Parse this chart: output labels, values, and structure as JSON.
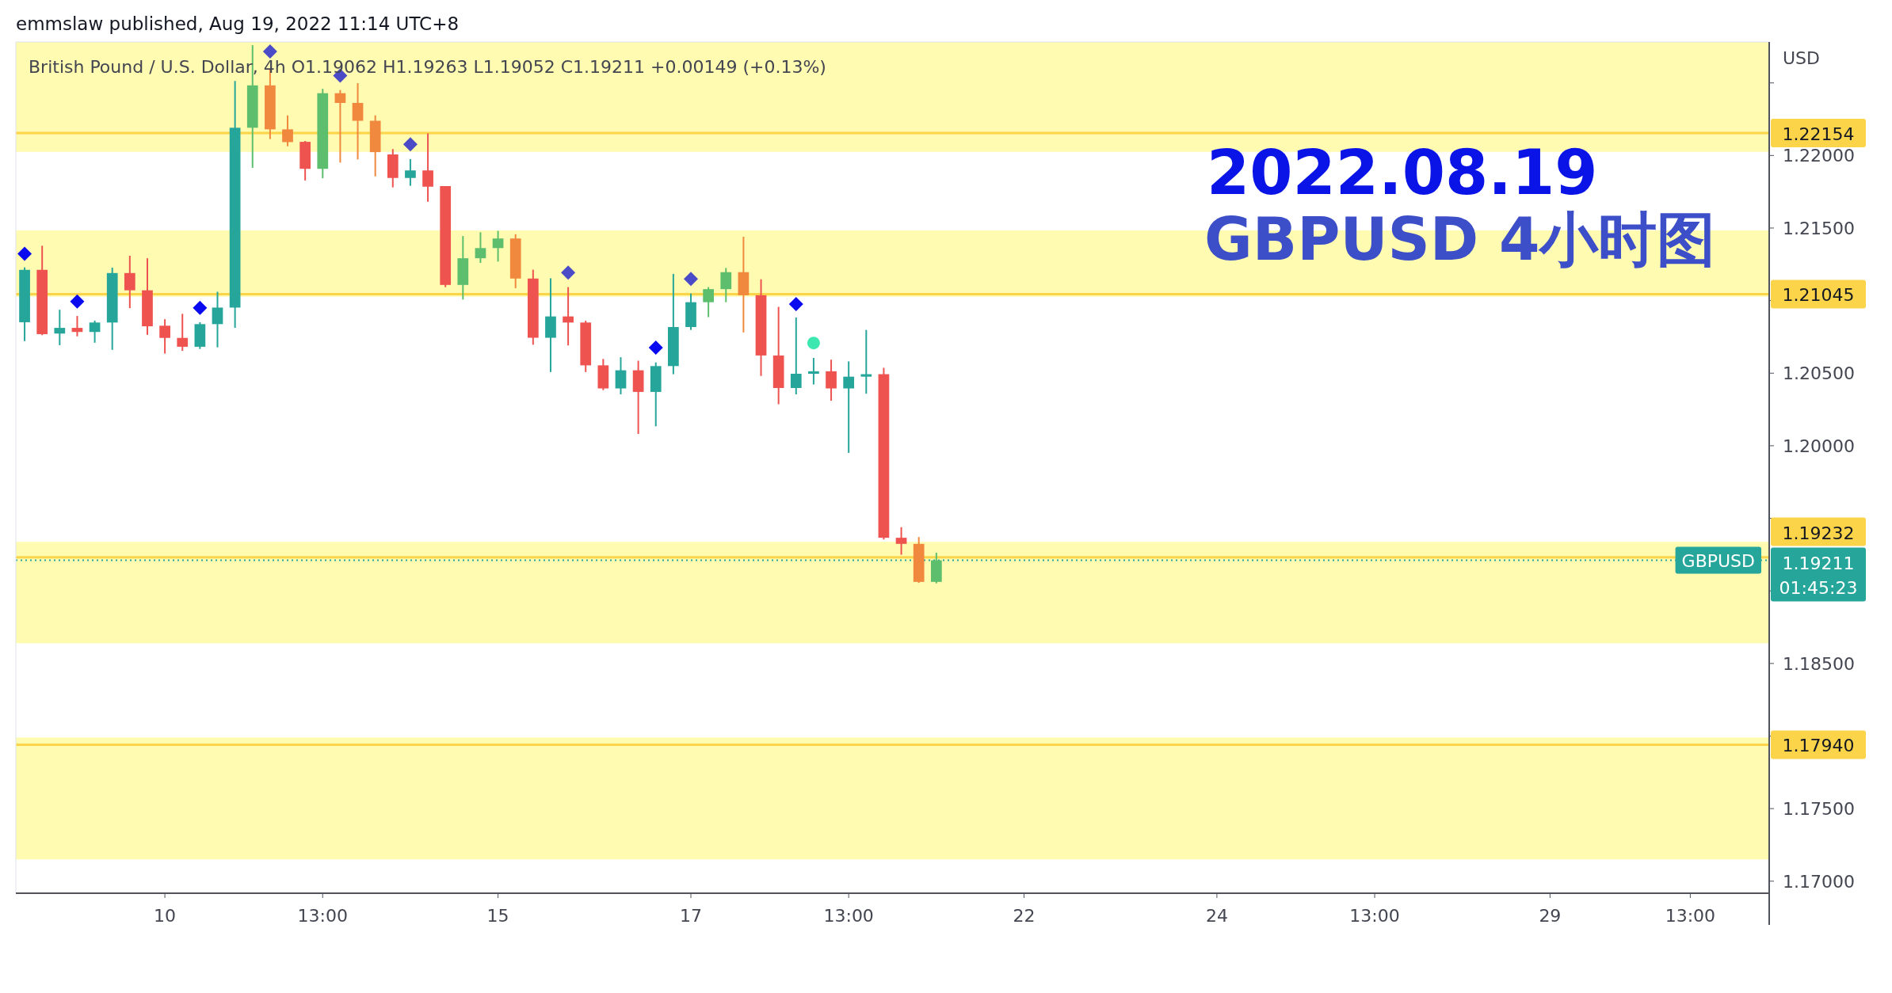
{
  "chart_data": {
    "type": "candlestick",
    "title": "2022.08.19",
    "subtitle": "GBPUSD 4小时图",
    "ylabel": "USD",
    "annotations": [
      "emmslaw published, Aug 19, 2022 11:14 UTC+8",
      "British Pound / U.S. Dollar, 4h  O1.19062  H1.19263  L1.19052  C1.19211  +0.00149 (+0.13%)",
      {
        "text": "GBPUSD",
        "y": 1.19211
      }
    ],
    "categories": [
      null,
      null,
      null,
      null,
      null,
      null,
      null,
      null,
      "10",
      null,
      null,
      null,
      null,
      null,
      null,
      null,
      null,
      "13:00",
      null,
      null,
      null,
      null,
      null,
      null,
      null,
      null,
      null,
      "15",
      null,
      null,
      null,
      null,
      null,
      null,
      null,
      null,
      null,
      null,
      "17",
      null,
      null,
      null,
      null,
      null,
      null,
      null,
      null,
      "13:00",
      null,
      null,
      null,
      null,
      null,
      null,
      null,
      null,
      null,
      "22",
      null,
      null,
      null,
      null,
      null,
      null,
      null,
      null,
      null,
      null,
      "24",
      null,
      null,
      null,
      null,
      null,
      null,
      null,
      null,
      "13:00",
      null,
      null,
      null,
      null,
      null,
      null,
      null,
      null,
      null,
      "29",
      null,
      null,
      null,
      null,
      null,
      null,
      null,
      "13:00",
      null,
      null,
      null,
      null
    ],
    "ohlc": [
      [
        1.20851,
        1.21229,
        1.20721,
        1.21212
      ],
      [
        1.21212,
        1.21378,
        1.20762,
        1.20769
      ],
      [
        1.20773,
        1.20937,
        1.20693,
        1.20812
      ],
      [
        1.20812,
        1.20894,
        1.20754,
        1.20784
      ],
      [
        1.20784,
        1.20862,
        1.2071,
        1.20849
      ],
      [
        1.20849,
        1.21227,
        1.20661,
        1.2119
      ],
      [
        1.2119,
        1.21309,
        1.20948,
        1.21071
      ],
      [
        1.21071,
        1.21292,
        1.20764,
        1.20823
      ],
      [
        1.20827,
        1.20872,
        1.20635,
        1.20743
      ],
      [
        1.20743,
        1.20909,
        1.20654,
        1.20682
      ],
      [
        1.20682,
        1.20851,
        1.20667,
        1.20838
      ],
      [
        1.20838,
        1.21061,
        1.20678,
        1.20952
      ],
      [
        1.20952,
        1.22513,
        1.20812,
        1.22191
      ],
      [
        1.22191,
        1.2276,
        1.21915,
        1.22483
      ],
      [
        1.22483,
        1.22596,
        1.22113,
        1.2218
      ],
      [
        1.2218,
        1.22276,
        1.22064,
        1.22092
      ],
      [
        1.22094,
        1.221,
        1.21828,
        1.21908
      ],
      [
        1.21908,
        1.22459,
        1.21843,
        1.22429
      ],
      [
        1.22429,
        1.22451,
        1.21951,
        1.22362
      ],
      [
        1.22362,
        1.22498,
        1.21973,
        1.22239
      ],
      [
        1.22239,
        1.22276,
        1.21856,
        1.22023
      ],
      [
        1.22007,
        1.22044,
        1.2178,
        1.21845
      ],
      [
        1.21845,
        1.21975,
        1.21791,
        1.21897
      ],
      [
        1.21897,
        1.22152,
        1.21681,
        1.21785
      ],
      [
        1.21789,
        1.21789,
        1.21093,
        1.21108
      ],
      [
        1.21108,
        1.21445,
        1.21007,
        1.21292
      ],
      [
        1.21292,
        1.21471,
        1.2126,
        1.21362
      ],
      [
        1.21362,
        1.21481,
        1.21269,
        1.21428
      ],
      [
        1.21428,
        1.21457,
        1.21086,
        1.21152
      ],
      [
        1.21152,
        1.21213,
        1.20696,
        1.20744
      ],
      [
        1.20744,
        1.21154,
        1.20508,
        1.20891
      ],
      [
        1.20891,
        1.21093,
        1.20691,
        1.20849
      ],
      [
        1.20849,
        1.20861,
        1.20508,
        1.20554
      ],
      [
        1.20554,
        1.20598,
        1.20383,
        1.20395
      ],
      [
        1.20395,
        1.2061,
        1.20354,
        1.2052
      ],
      [
        1.2052,
        1.20586,
        1.20081,
        1.20371
      ],
      [
        1.20371,
        1.20574,
        1.20134,
        1.20549
      ],
      [
        1.20549,
        1.21184,
        1.20493,
        1.20818
      ],
      [
        1.20818,
        1.21049,
        1.20798,
        1.20989
      ],
      [
        1.20989,
        1.21093,
        1.20886,
        1.21079
      ],
      [
        1.21079,
        1.21225,
        1.20989,
        1.21196
      ],
      [
        1.21196,
        1.2144,
        1.20781,
        1.21037
      ],
      [
        1.21037,
        1.21147,
        1.20481,
        1.20622
      ],
      [
        1.20622,
        1.20957,
        1.20286,
        1.20398
      ],
      [
        1.20398,
        1.20884,
        1.20354,
        1.20496
      ],
      [
        1.20496,
        1.20605,
        1.20422,
        1.20513
      ],
      [
        1.20513,
        1.20593,
        1.2031,
        1.20395
      ],
      [
        1.20395,
        1.20581,
        1.19951,
        1.20476
      ],
      [
        1.20476,
        1.20798,
        1.20359,
        1.20493
      ],
      [
        1.20493,
        1.20537,
        1.19354,
        1.19366
      ],
      [
        1.19366,
        1.19439,
        1.19249,
        1.19324
      ],
      [
        1.19324,
        1.19371,
        1.19055,
        1.19062
      ],
      [
        1.19062,
        1.19263,
        1.19052,
        1.19211
      ],
      null,
      null,
      null,
      null,
      null,
      null,
      null,
      null,
      null,
      null,
      null,
      null,
      null,
      null,
      null,
      null,
      null,
      null,
      null,
      null,
      null,
      null,
      null,
      null,
      null,
      null,
      null,
      null,
      null,
      null,
      null,
      null,
      null,
      null,
      null,
      null,
      null,
      null,
      null,
      null,
      null,
      null,
      null,
      null,
      null,
      null,
      null
    ],
    "colors": [
      "#26a69a",
      "#ef5350",
      "#26a69a",
      "#ef5350",
      "#26a69a",
      "#26a69a",
      "#ef5350",
      "#ef5350",
      "#ef5350",
      "#ef5350",
      "#26a69a",
      "#26a69a",
      "#26a69a",
      "#5dbf6e",
      "#f0883e",
      "#f0883e",
      "#ef5350",
      "#5dbf6e",
      "#f0883e",
      "#f0883e",
      "#f0883e",
      "#ef5350",
      "#26a69a",
      "#ef5350",
      "#ef5350",
      "#5dbf6e",
      "#5dbf6e",
      "#5dbf6e",
      "#f0883e",
      "#ef5350",
      "#26a69a",
      "#ef5350",
      "#ef5350",
      "#ef5350",
      "#26a69a",
      "#ef5350",
      "#26a69a",
      "#26a69a",
      "#26a69a",
      "#5dbf6e",
      "#5dbf6e",
      "#f0883e",
      "#ef5350",
      "#ef5350",
      "#26a69a",
      "#26a69a",
      "#ef5350",
      "#26a69a",
      "#26a69a",
      "#ef5350",
      "#ef5350",
      "#f0883e",
      "#5dbf6e",
      null,
      null,
      null,
      null,
      null,
      null,
      null,
      null,
      null,
      null,
      null,
      null,
      null,
      null,
      null,
      null,
      null,
      null,
      null,
      null,
      null,
      null,
      null,
      null,
      null,
      null,
      null,
      null,
      null,
      null,
      null,
      null,
      null,
      null,
      null,
      null,
      null,
      null,
      null,
      null,
      null,
      null,
      null,
      null,
      null,
      null,
      null
    ],
    "series": [
      {
        "type": "scatter",
        "marker": "diamond",
        "color": "#0a0af0",
        "values": [
          1.21322,
          null,
          null,
          1.20994,
          null,
          null,
          null,
          null,
          null,
          null,
          1.2095,
          null,
          null,
          null,
          null,
          null,
          null,
          null,
          null,
          null,
          null,
          null,
          null,
          null,
          null,
          null,
          null,
          null,
          null,
          null,
          null,
          null,
          null,
          null,
          null,
          null,
          1.20676,
          null,
          null,
          null,
          null,
          null,
          null,
          null,
          1.20976,
          null,
          null,
          null,
          null,
          null,
          null,
          null,
          null,
          null,
          null,
          null,
          null,
          null,
          null,
          null,
          null,
          null,
          null,
          null,
          null,
          null,
          null,
          null,
          null,
          null,
          null,
          null,
          null,
          null,
          null,
          null,
          null,
          null,
          null,
          null,
          null,
          null,
          null,
          null,
          null,
          null,
          null,
          null,
          null,
          null,
          null,
          null,
          null,
          null,
          null,
          null,
          null,
          null,
          null,
          null
        ]
      },
      {
        "type": "scatter",
        "marker": "diamond",
        "color": "#4b4bc8",
        "values": [
          null,
          null,
          null,
          null,
          null,
          null,
          null,
          null,
          null,
          null,
          null,
          null,
          null,
          null,
          1.22717,
          null,
          null,
          null,
          1.2255,
          null,
          null,
          null,
          1.22077,
          null,
          null,
          null,
          null,
          null,
          null,
          null,
          null,
          1.21193,
          null,
          null,
          null,
          null,
          null,
          null,
          1.21149,
          null,
          null,
          null,
          null,
          null,
          null,
          null,
          null,
          null,
          null,
          null,
          null,
          null,
          null,
          null,
          null,
          null,
          null,
          null,
          null,
          null,
          null,
          null,
          null,
          null,
          null,
          null,
          null,
          null,
          null,
          null,
          null,
          null,
          null,
          null,
          null,
          null,
          null,
          null,
          null,
          null,
          null,
          null,
          null,
          null,
          null,
          null,
          null,
          null,
          null,
          null,
          null,
          null,
          null,
          null,
          null,
          null,
          null,
          null,
          null,
          null
        ]
      },
      {
        "type": "scatter",
        "marker": "circle",
        "color": "#3de8b0",
        "values": [
          null,
          null,
          null,
          null,
          null,
          null,
          null,
          null,
          null,
          null,
          null,
          null,
          null,
          null,
          null,
          null,
          null,
          null,
          null,
          null,
          null,
          null,
          null,
          null,
          null,
          null,
          null,
          null,
          null,
          null,
          null,
          null,
          null,
          null,
          null,
          null,
          null,
          null,
          null,
          null,
          null,
          null,
          null,
          null,
          null,
          1.20708,
          null,
          null,
          null,
          null,
          null,
          null,
          null,
          null,
          null,
          null,
          null,
          null,
          null,
          null,
          null,
          null,
          null,
          null,
          null,
          null,
          null,
          null,
          null,
          null,
          null,
          null,
          null,
          null,
          null,
          null,
          null,
          null,
          null,
          null,
          null,
          null,
          null,
          null,
          null,
          null,
          null,
          null,
          null,
          null,
          null,
          null,
          null,
          null,
          null,
          null,
          null,
          null,
          null,
          null
        ]
      }
    ],
    "bands": [
      {
        "axis": "y",
        "from": 1.22025,
        "to": 1.22782,
        "color": "#fffbb0"
      },
      {
        "axis": "y",
        "from": 1.21027,
        "to": 1.21484,
        "color": "#fffbb0"
      },
      {
        "axis": "y",
        "from": 1.18639,
        "to": 1.19338,
        "color": "#fffbb0"
      },
      {
        "axis": "y",
        "from": 1.1715,
        "to": 1.1799,
        "color": "#fffbb0"
      }
    ],
    "ref_lines": [
      {
        "axis": "y",
        "value": 1.22154,
        "label": "1.22154",
        "color": "#fbd44a"
      },
      {
        "axis": "y",
        "value": 1.21045,
        "label": "1.21045",
        "color": "#fbd44a"
      },
      {
        "axis": "y",
        "value": 1.19232,
        "label": "1.19232",
        "color": "#fbd44a"
      },
      {
        "axis": "y",
        "value": 1.1794,
        "label": "1.17940",
        "color": "#fbd44a"
      },
      {
        "axis": "y",
        "value": 1.19211,
        "label": "1.19211\n01:45:23",
        "color": "#26a69a",
        "line_style": "dotted"
      }
    ],
    "ylim": [
      1.16917,
      1.22782
    ],
    "yticks": [
      {
        "value": 1.17,
        "label": "1.17000"
      },
      {
        "value": 1.175,
        "label": "1.17500"
      },
      {
        "value": 1.18,
        "label": null
      },
      {
        "value": 1.185,
        "label": "1.18500"
      },
      {
        "value": 1.19,
        "label": null
      },
      {
        "value": 1.195,
        "label": null
      },
      {
        "value": 1.2,
        "label": "1.20000"
      },
      {
        "value": 1.205,
        "label": "1.20500"
      },
      {
        "value": 1.21,
        "label": null
      },
      {
        "value": 1.215,
        "label": "1.21500"
      },
      {
        "value": 1.22,
        "label": "1.22000"
      },
      {
        "value": 1.225,
        "label": null
      }
    ]
  }
}
